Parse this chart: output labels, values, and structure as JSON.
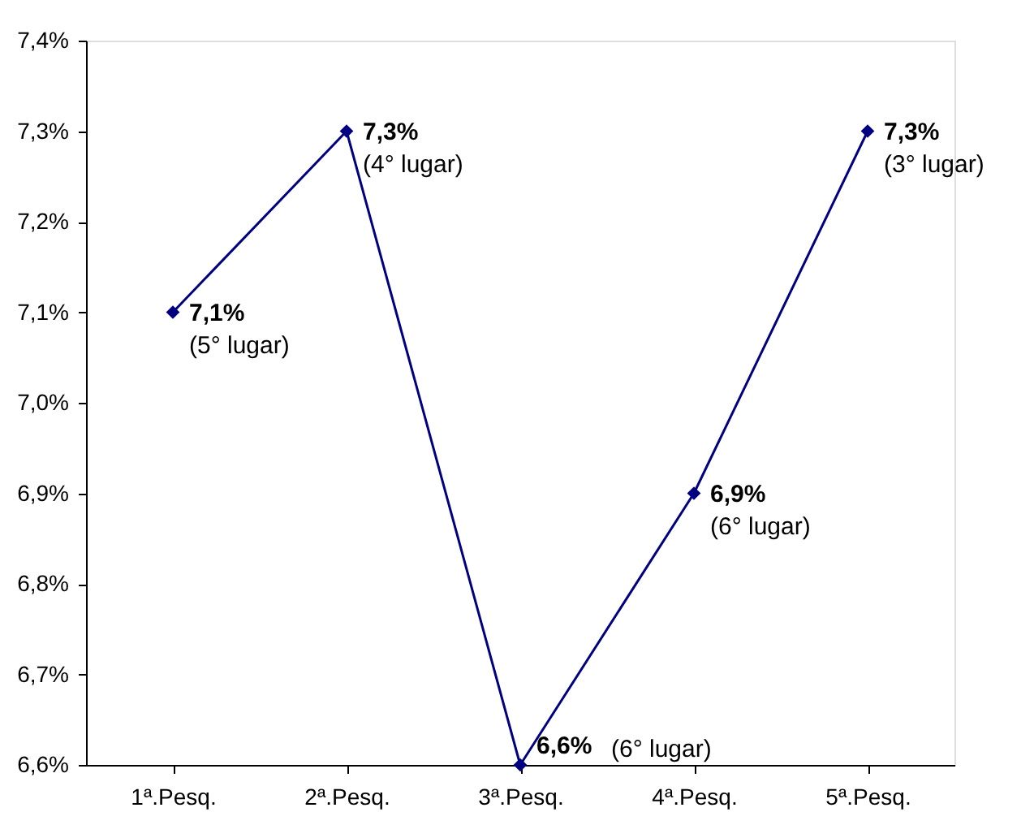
{
  "chart_data": {
    "type": "line",
    "categories": [
      "1ª.Pesq.",
      "2ª.Pesq.",
      "3ª.Pesq.",
      "4ª.Pesq.",
      "5ª.Pesq."
    ],
    "series": [
      {
        "color": "#000080",
        "values": [
          7.1,
          7.3,
          6.6,
          6.9,
          7.3
        ]
      }
    ],
    "value_labels": [
      "7,1%",
      "7,3%",
      "6,6%",
      "6,9%",
      "7,3%"
    ],
    "annotations": [
      "(5° lugar)",
      "(4° lugar)",
      "(6° lugar)",
      "(6° lugar)",
      "(3° lugar)"
    ],
    "ylim": [
      6.6,
      7.4
    ],
    "yticks": [
      {
        "value": 6.6,
        "label": "6,6%"
      },
      {
        "value": 6.7,
        "label": "6,7%"
      },
      {
        "value": 6.8,
        "label": "6,8%"
      },
      {
        "value": 6.9,
        "label": "6,9%"
      },
      {
        "value": 7.0,
        "label": "7,0%"
      },
      {
        "value": 7.1,
        "label": "7,1%"
      },
      {
        "value": 7.2,
        "label": "7,2%"
      },
      {
        "value": 7.3,
        "label": "7,3%"
      },
      {
        "value": 7.4,
        "label": "7,4%"
      }
    ],
    "grid": false,
    "marker": "diamond",
    "line_style": "solid"
  }
}
